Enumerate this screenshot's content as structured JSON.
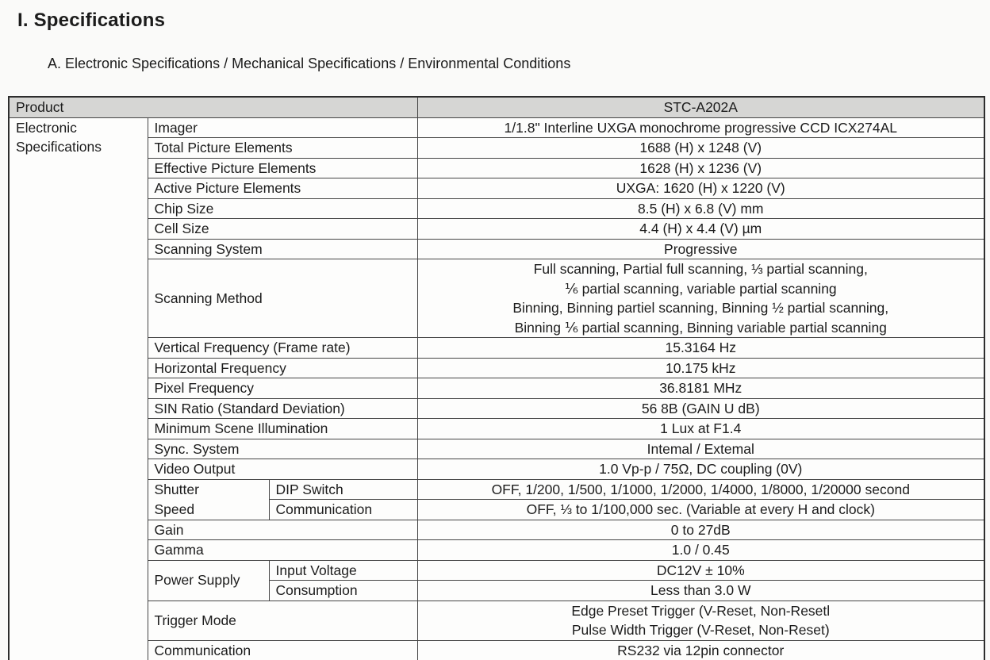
{
  "page": {
    "title": "I. Specifications",
    "subtitle": "A. Electronic Specifications / Mechanical Specifications / Environmental Conditions"
  },
  "table": {
    "header": {
      "product_label": "Product",
      "product_value": "STC-A202A"
    },
    "section_label_lines": [
      "Electronic",
      "Specifications"
    ],
    "rows": [
      {
        "label": "Imager",
        "value": "1/1.8\" Interline UXGA monochrome progressive CCD ICX274AL"
      },
      {
        "label": "Total Picture Elements",
        "value": "1688 (H) x 1248 (V)"
      },
      {
        "label": "Effective Picture Elements",
        "value": "1628 (H) x 1236 (V)"
      },
      {
        "label": "Active Picture Elements",
        "value": "UXGA: 1620 (H) x 1220 (V)"
      },
      {
        "label": "Chip Size",
        "value": "8.5 (H) x 6.8 (V) mm"
      },
      {
        "label": "Cell Size",
        "value": "4.4 (H) x 4.4 (V) µm"
      },
      {
        "label": "Scanning System",
        "value": "Progressive"
      },
      {
        "label": "Scanning Method",
        "value_lines": [
          "Full scanning, Partial full scanning, ⅓ partial scanning,",
          "⅙ partial scanning, variable partial scanning",
          "Binning, Binning partiel scanning, Binning ½ partial scanning,",
          "Binning ⅙ partial scanning, Binning variable partial scanning"
        ]
      },
      {
        "label": "Vertical Frequency (Frame rate)",
        "value": "15.3164 Hz"
      },
      {
        "label": "Horizontal Frequency",
        "value": "10.175 kHz"
      },
      {
        "label": "Pixel Frequency",
        "value": "36.8181 MHz"
      },
      {
        "label": "SIN Ratio (Standard Deviation)",
        "value": "56 8B (GAIN U dB)"
      },
      {
        "label": "Minimum Scene Illumination",
        "value": "1 Lux at F1.4"
      },
      {
        "label": "Sync. System",
        "value": "Intemal / Extemal"
      },
      {
        "label": "Video Output",
        "value": "1.0 Vp-p / 75Ω, DC coupling (0V)"
      },
      {
        "label": "Shutter Speed",
        "label_lines": [
          "Shutter",
          "Speed"
        ],
        "sub_rows": [
          {
            "label": "DIP Switch",
            "value": "OFF, 1/200, 1/500, 1/1000, 1/2000, 1/4000, 1/8000, 1/20000 second"
          },
          {
            "label": "Communication",
            "value": "OFF, ⅓ to 1/100,000 sec. (Variable at every H and clock)"
          }
        ]
      },
      {
        "label": "Gain",
        "value": "0 to 27dB"
      },
      {
        "label": "Gamma",
        "value": "1.0 / 0.45"
      },
      {
        "label": "Power Supply",
        "sub_rows": [
          {
            "label": "Input Voltage",
            "value": "DC12V ± 10%"
          },
          {
            "label": "Consumption",
            "value": "Less than 3.0 W"
          }
        ]
      },
      {
        "label": "Trigger Mode",
        "value_lines": [
          "Edge Preset Trigger (V-Reset, Non-Resetl",
          "Pulse Width Trigger (V-Reset, Non-Reset)"
        ]
      },
      {
        "label": "Communication",
        "value": "RS232 via 12pin connector"
      }
    ]
  }
}
